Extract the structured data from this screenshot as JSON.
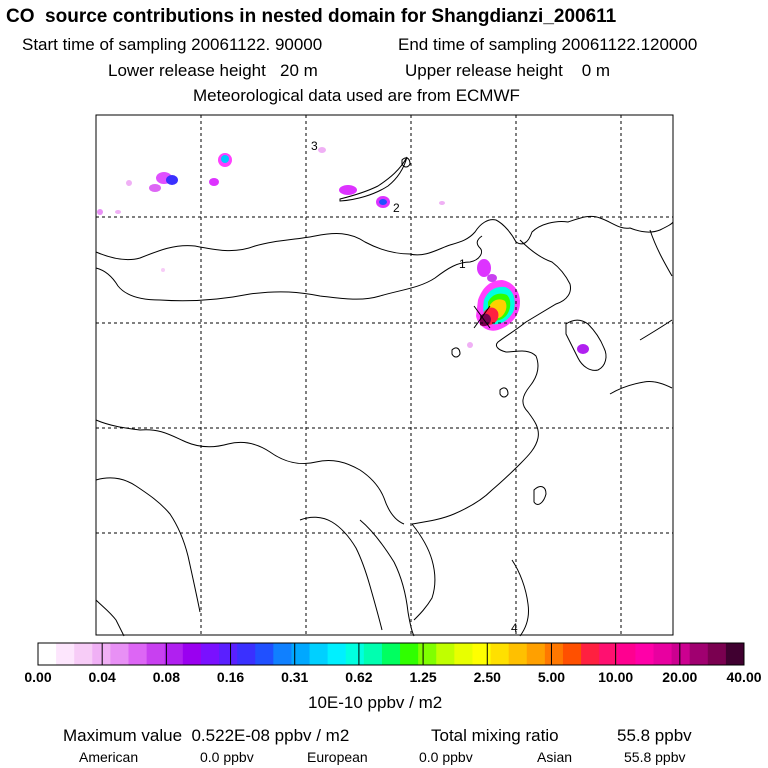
{
  "header": {
    "title": "CO  source contributions in nested domain for Shangdianzi_200611",
    "start_label": "Start time of sampling 20061122. 90000",
    "end_label": "End time of sampling 20061122.120000",
    "lower_label": "Lower release height   20 m",
    "upper_label": "Upper release height    0 m",
    "met_label": "Meteorological data used are from ECMWF"
  },
  "map": {
    "site_labels": [
      "1",
      "2",
      "3",
      "4"
    ],
    "colors": {
      "coast": "#000000",
      "grid": "#000000",
      "frame": "#000000"
    }
  },
  "colorbar": {
    "colors": [
      "#ffffff",
      "#fde6fd",
      "#f7ccf7",
      "#f0b0f5",
      "#e890f5",
      "#dd66f5",
      "#c840f0",
      "#b020f0",
      "#9a00f0",
      "#7a10ff",
      "#5a20ff",
      "#3a30ff",
      "#2050ff",
      "#1080ff",
      "#00a8ff",
      "#00d0ff",
      "#00f0ff",
      "#00ffe0",
      "#00ffb0",
      "#00ff60",
      "#30ff00",
      "#80ff00",
      "#c0ff00",
      "#e8ff00",
      "#ffff00",
      "#ffe000",
      "#ffc000",
      "#ffa000",
      "#ff7800",
      "#ff5000",
      "#ff2040",
      "#ff1070",
      "#ff0090",
      "#ff00a8",
      "#e800a0",
      "#cc0090",
      "#a00070",
      "#7a0050",
      "#400030"
    ],
    "tick_labels": [
      "0.00",
      "0.04",
      "0.08",
      "0.16",
      "0.31",
      "0.62",
      "1.25",
      "2.50",
      "5.00",
      "10.00",
      "20.00",
      "40.00"
    ],
    "unit": "10E-10 ppbv / m2"
  },
  "footer": {
    "max_label": "Maximum value  0.522E-08 ppbv / m2",
    "total_label": "Total mixing ratio",
    "total_value": "55.8 ppbv",
    "american_label": "American",
    "american_value": "0.0 ppbv",
    "european_label": "European",
    "european_value": "0.0 ppbv",
    "asian_label": "Asian",
    "asian_value": "55.8 ppbv"
  }
}
